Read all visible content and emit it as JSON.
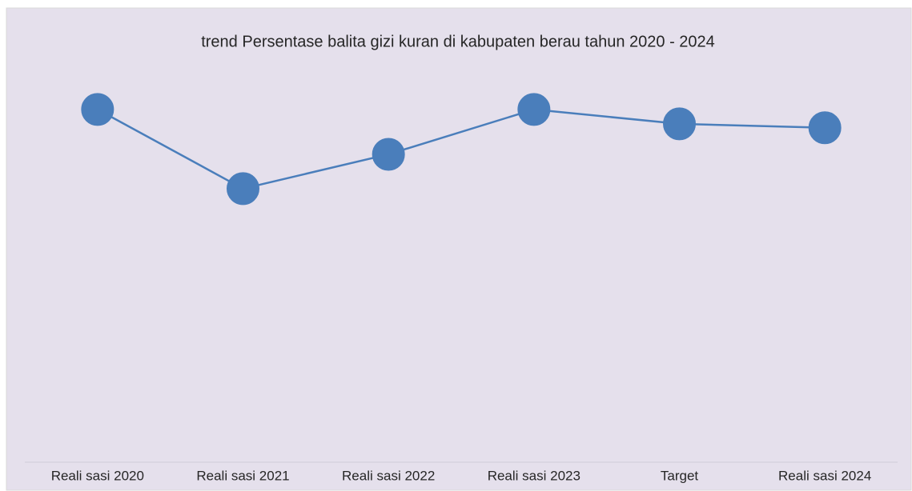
{
  "chart_data": {
    "type": "line",
    "title": "trend Persentase balita gizi kuran di kabupaten berau tahun 2020 - 2024",
    "categories": [
      "Reali sasi 2020",
      "Reali sasi 2021",
      "Reali sasi 2022",
      "Reali sasi 2023",
      "Target",
      "Reali sasi 2024"
    ],
    "series": [
      {
        "name": "Persentase",
        "color": "#4a7ebb",
        "values": [
          9.04,
          7.01,
          7.89,
          9.04,
          8.67,
          8.57
        ]
      }
    ],
    "ylim": [
      0,
      10
    ]
  }
}
